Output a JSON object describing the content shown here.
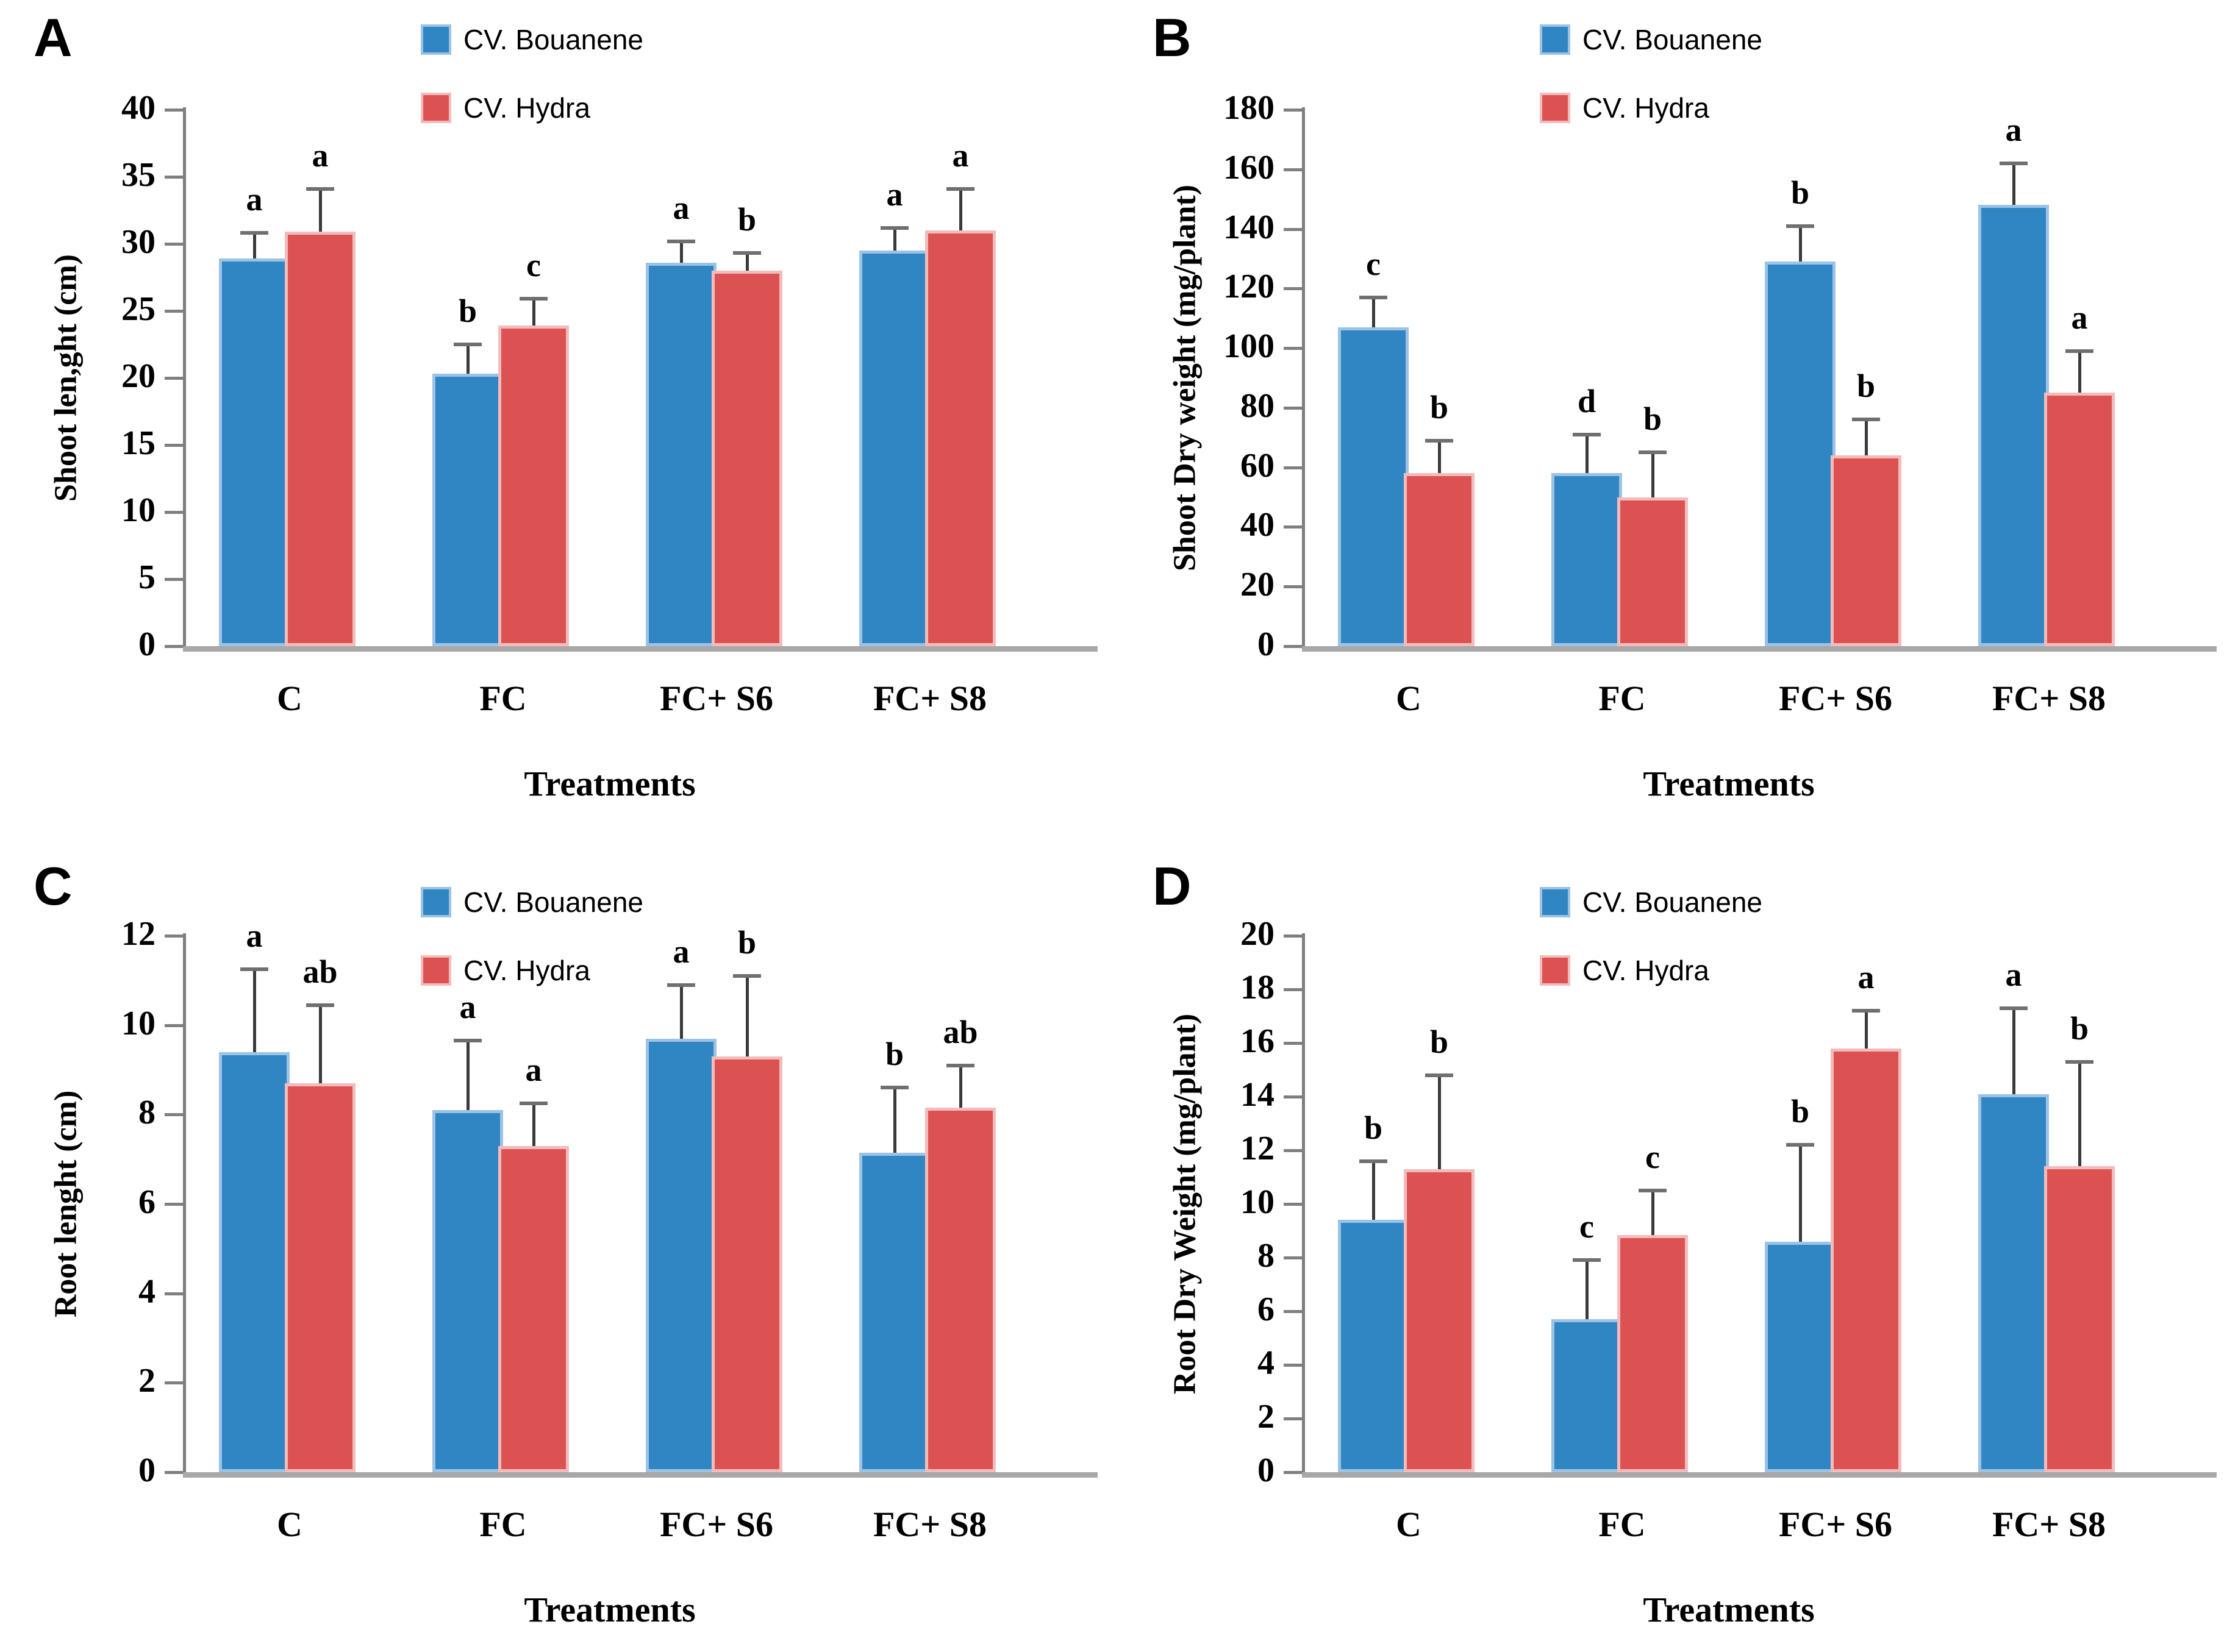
{
  "figure": {
    "x_axis_title": "Treatments",
    "categories": [
      "C",
      "FC",
      "FC+ S6",
      "FC+ S8"
    ]
  },
  "legend": {
    "series": [
      {
        "name": "CV. Bouanene",
        "color": "#2f86c3",
        "edge_color": "#9cc3e5"
      },
      {
        "name": "CV. Hydra",
        "color": "#dc5252",
        "edge_color": "#f3bcbc"
      }
    ]
  },
  "chart_data": [
    {
      "panel": "A",
      "type": "bar",
      "ylabel": "Shoot len,ght (cm)",
      "xlabel": "Treatments",
      "ylim": [
        0,
        40
      ],
      "ytick_step": 5,
      "grid": false,
      "legend_position": "top",
      "categories": [
        "C",
        "FC",
        "FC+ S6",
        "FC+ S8"
      ],
      "series": [
        {
          "name": "CV. Bouanene",
          "values": [
            28.9,
            20.3,
            28.6,
            29.5
          ],
          "errors": [
            1.9,
            2.2,
            1.6,
            1.7
          ],
          "letters": [
            "a",
            "b",
            "a",
            "a"
          ]
        },
        {
          "name": "CV. Hydra",
          "values": [
            30.9,
            23.9,
            28.0,
            31.0
          ],
          "errors": [
            3.2,
            2.0,
            1.3,
            3.1
          ],
          "letters": [
            "a",
            "c",
            "b",
            "a"
          ]
        }
      ]
    },
    {
      "panel": "B",
      "type": "bar",
      "ylabel": "Shoot Dry weight (mg/plant)",
      "xlabel": "Treatments",
      "ylim": [
        0,
        180
      ],
      "ytick_step": 20,
      "grid": false,
      "legend_position": "top",
      "categories": [
        "C",
        "FC",
        "FC+ S6",
        "FC+ S8"
      ],
      "series": [
        {
          "name": "CV. Bouanene",
          "values": [
            107,
            58,
            129,
            148
          ],
          "errors": [
            10,
            13,
            12,
            14
          ],
          "letters": [
            "c",
            "d",
            "b",
            "a"
          ]
        },
        {
          "name": "CV. Hydra",
          "values": [
            58,
            50,
            64,
            85
          ],
          "errors": [
            11,
            15,
            12,
            14
          ],
          "letters": [
            "b",
            "b",
            "b",
            "a"
          ]
        }
      ]
    },
    {
      "panel": "C",
      "type": "bar",
      "ylabel": "Root lenght (cm)",
      "xlabel": "Treatments",
      "ylim": [
        0,
        12
      ],
      "ytick_step": 2,
      "grid": false,
      "legend_position": "top",
      "categories": [
        "C",
        "FC",
        "FC+ S6",
        "FC+ S8"
      ],
      "series": [
        {
          "name": "CV. Bouanene",
          "values": [
            9.4,
            8.1,
            9.7,
            7.15
          ],
          "errors": [
            1.85,
            1.55,
            1.2,
            1.45
          ],
          "letters": [
            "a",
            "a",
            "a",
            "b"
          ]
        },
        {
          "name": "CV. Hydra",
          "values": [
            8.7,
            7.3,
            9.3,
            8.15
          ],
          "errors": [
            1.75,
            0.95,
            1.8,
            0.95
          ],
          "letters": [
            "ab",
            "a",
            "b",
            "ab"
          ]
        }
      ]
    },
    {
      "panel": "D",
      "type": "bar",
      "ylabel": "Root Dry Weight (mg/plant)",
      "xlabel": "Treatments",
      "ylim": [
        0,
        20
      ],
      "ytick_step": 2,
      "grid": false,
      "legend_position": "top",
      "categories": [
        "C",
        "FC",
        "FC+ S6",
        "FC+ S8"
      ],
      "series": [
        {
          "name": "CV. Bouanene",
          "values": [
            9.4,
            5.7,
            8.6,
            14.1
          ],
          "errors": [
            2.2,
            2.2,
            3.6,
            3.2
          ],
          "letters": [
            "b",
            "c",
            "b",
            "a"
          ]
        },
        {
          "name": "CV. Hydra",
          "values": [
            11.3,
            8.85,
            15.8,
            11.4
          ],
          "errors": [
            3.5,
            1.65,
            1.4,
            3.9
          ],
          "letters": [
            "b",
            "c",
            "a",
            "b"
          ]
        }
      ]
    }
  ]
}
